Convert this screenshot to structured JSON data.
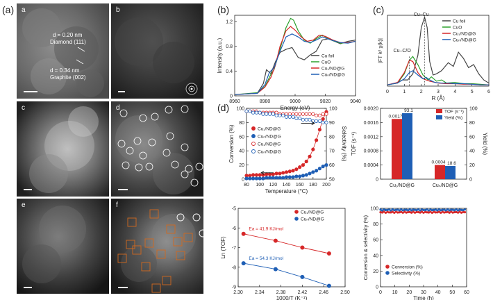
{
  "figure_labels": {
    "a_outer": "(a)",
    "b": "(b)",
    "c": "(c)",
    "d": "(d)"
  },
  "micrographs": {
    "panels": [
      "a",
      "b",
      "c",
      "d",
      "e",
      "f"
    ],
    "annotations": {
      "spacing_1": "d = 0.20 nm",
      "plane_1": "Diamond (111)",
      "spacing_2": "d = 0.34 nm",
      "plane_2": "Graphite (002)"
    }
  },
  "legend_labels": {
    "cu_foil": "Cu foil",
    "cuo": "CuO",
    "cu1": "Cu₁/ND@G",
    "cun": "Cuₙ/ND@G"
  },
  "colors": {
    "cu_foil": "#444444",
    "cuo": "#2ca02c",
    "cu1": "#d62728",
    "cun": "#1f5fb5",
    "orange": "#d2691e"
  },
  "chart_data": [
    {
      "id": "b",
      "type": "line",
      "xlabel": "Energy (eV)",
      "ylabel": "Intensity (a.u.)",
      "xlim": [
        8960,
        9040
      ],
      "ylim": [
        0,
        1.3
      ],
      "xticks": [
        8960,
        8980,
        9000,
        9020,
        9040
      ],
      "yticks": [
        0.0,
        0.4,
        0.8,
        1.2
      ],
      "series": [
        {
          "name": "Cu foil",
          "color": "#444444",
          "x": [
            8960,
            8975,
            8979,
            8981,
            8984,
            8987,
            8990,
            8994,
            8998,
            9002,
            9006,
            9010,
            9014,
            9018,
            9022,
            9026,
            9030,
            9035,
            9040
          ],
          "y": [
            0.02,
            0.04,
            0.2,
            0.42,
            0.36,
            0.55,
            0.7,
            0.75,
            0.78,
            0.62,
            0.58,
            0.66,
            0.72,
            0.9,
            0.92,
            0.88,
            0.84,
            0.88,
            0.9
          ]
        },
        {
          "name": "CuO",
          "color": "#2ca02c",
          "x": [
            8960,
            8975,
            8980,
            8984,
            8986,
            8990,
            8994,
            8997,
            8999,
            9002,
            9006,
            9010,
            9014,
            9018,
            9024,
            9030,
            9035,
            9040
          ],
          "y": [
            0.02,
            0.05,
            0.15,
            0.35,
            0.42,
            0.75,
            1.1,
            1.25,
            1.22,
            1.05,
            0.9,
            0.85,
            0.92,
            0.98,
            0.9,
            0.85,
            0.86,
            0.88
          ]
        },
        {
          "name": "Cu₁/ND@G",
          "color": "#d62728",
          "x": [
            8960,
            8975,
            8980,
            8984,
            8987,
            8990,
            8994,
            8997,
            9000,
            9004,
            9008,
            9012,
            9016,
            9020,
            9025,
            9030,
            9035,
            9040
          ],
          "y": [
            0.02,
            0.04,
            0.14,
            0.3,
            0.5,
            0.8,
            1.05,
            1.12,
            1.06,
            0.95,
            0.88,
            0.9,
            0.98,
            0.96,
            0.9,
            0.86,
            0.86,
            0.88
          ]
        },
        {
          "name": "Cuₙ/ND@G",
          "color": "#1f5fb5",
          "x": [
            8960,
            8975,
            8980,
            8983,
            8986,
            8990,
            8994,
            8998,
            9002,
            9006,
            9010,
            9014,
            9018,
            9024,
            9030,
            9035,
            9040
          ],
          "y": [
            0.02,
            0.04,
            0.18,
            0.38,
            0.45,
            0.72,
            0.95,
            1.0,
            0.95,
            0.88,
            0.86,
            0.9,
            0.95,
            0.9,
            0.86,
            0.85,
            0.88
          ]
        }
      ],
      "legend": [
        "Cu foil",
        "CuO",
        "Cu₁/ND@G",
        "Cuₙ/ND@G"
      ]
    },
    {
      "id": "c",
      "type": "line",
      "xlabel": "R (Å)",
      "ylabel": "|FT k² χ(k)|",
      "xlim": [
        0,
        6
      ],
      "ylim": [
        0,
        1.15
      ],
      "xticks": [
        0,
        1,
        2,
        3,
        4,
        5,
        6
      ],
      "annotations": [
        "Cu–Cu",
        "Cu–C/O"
      ],
      "series": [
        {
          "name": "Cu foil",
          "color": "#444444",
          "x": [
            0,
            0.5,
            0.9,
            1.2,
            1.5,
            1.8,
            2.0,
            2.2,
            2.35,
            2.5,
            2.7,
            2.9,
            3.2,
            3.6,
            3.9,
            4.2,
            4.5,
            4.8,
            5.1,
            5.4,
            5.7,
            6.0
          ],
          "y": [
            0.02,
            0.05,
            0.1,
            0.1,
            0.2,
            0.5,
            0.95,
            1.12,
            0.95,
            0.4,
            0.18,
            0.2,
            0.25,
            0.38,
            0.32,
            0.55,
            0.45,
            0.3,
            0.35,
            0.2,
            0.1,
            0.05
          ]
        },
        {
          "name": "CuO",
          "color": "#2ca02c",
          "x": [
            0,
            0.6,
            1.0,
            1.3,
            1.5,
            1.8,
            2.1,
            2.4,
            2.6,
            2.9,
            3.2,
            3.5,
            4.0,
            4.5,
            5.0,
            5.5,
            6.0
          ],
          "y": [
            0.02,
            0.05,
            0.2,
            0.42,
            0.48,
            0.35,
            0.18,
            0.1,
            0.15,
            0.08,
            0.1,
            0.05,
            0.06,
            0.04,
            0.04,
            0.03,
            0.02
          ]
        },
        {
          "name": "Cu₁/ND@G",
          "color": "#d62728",
          "x": [
            0,
            0.6,
            1.0,
            1.3,
            1.5,
            1.8,
            2.1,
            2.5,
            3.0,
            3.5,
            4.0,
            4.5,
            5.0,
            5.5,
            6.0
          ],
          "y": [
            0.02,
            0.06,
            0.22,
            0.42,
            0.4,
            0.22,
            0.12,
            0.08,
            0.05,
            0.04,
            0.04,
            0.03,
            0.03,
            0.02,
            0.02
          ]
        },
        {
          "name": "Cuₙ/ND@G",
          "color": "#1f5fb5",
          "x": [
            0,
            0.6,
            1.0,
            1.3,
            1.5,
            1.8,
            2.1,
            2.3,
            2.5,
            2.8,
            3.2,
            3.6,
            4.0,
            4.5,
            5.0,
            5.5,
            6.0
          ],
          "y": [
            0.02,
            0.05,
            0.12,
            0.22,
            0.25,
            0.18,
            0.12,
            0.14,
            0.1,
            0.06,
            0.05,
            0.05,
            0.04,
            0.04,
            0.03,
            0.02,
            0.02
          ]
        }
      ],
      "legend": [
        "Cu foil",
        "CuO",
        "Cu₁/ND@G",
        "Cuₙ/ND@G"
      ]
    },
    {
      "id": "d_conversion",
      "type": "scatter",
      "xlabel": "Temperature (°C)",
      "ylabel": "Conversion (%)",
      "y2label": "Selectivity (%)",
      "xlim": [
        80,
        200
      ],
      "ylim": [
        0,
        100
      ],
      "y2lim": [
        50,
        100
      ],
      "xticks": [
        80,
        100,
        120,
        140,
        160,
        180,
        200
      ],
      "yticks": [
        0,
        20,
        40,
        60,
        80,
        100
      ],
      "y2ticks": [
        50,
        60,
        70,
        80,
        90,
        100
      ],
      "x": [
        80,
        85,
        90,
        95,
        100,
        105,
        110,
        115,
        120,
        125,
        130,
        135,
        140,
        145,
        150,
        155,
        160,
        165,
        170,
        175,
        180,
        185,
        190,
        195,
        200
      ],
      "series": [
        {
          "name": "Cu₁/ND@G",
          "axis": "left",
          "filled": true,
          "color": "#d62728",
          "values": [
            5,
            5,
            6,
            6,
            6,
            6,
            7,
            7,
            7,
            8,
            8,
            9,
            10,
            11,
            12,
            14,
            17,
            20,
            25,
            32,
            42,
            55,
            70,
            85,
            95
          ]
        },
        {
          "name": "Cuₙ/ND@G",
          "axis": "left",
          "filled": true,
          "color": "#1f5fb5",
          "values": [
            1,
            1,
            1,
            1,
            1,
            1,
            2,
            2,
            2,
            2,
            2,
            2,
            3,
            3,
            3,
            4,
            4,
            5,
            6,
            8,
            10,
            12,
            15,
            18,
            20
          ]
        },
        {
          "name": "Cu₁/ND@G",
          "axis": "right",
          "filled": false,
          "color": "#d62728",
          "values": [
            98,
            98,
            98,
            98,
            97,
            97,
            97,
            97,
            97,
            97,
            96,
            96,
            96,
            96,
            96,
            96,
            96,
            96,
            96,
            96,
            96,
            95,
            95,
            96,
            96
          ]
        },
        {
          "name": "Cuₙ/ND@G",
          "axis": "right",
          "filled": false,
          "color": "#1f5fb5",
          "values": [
            98,
            98,
            97,
            97,
            97,
            96,
            96,
            96,
            96,
            95,
            95,
            95,
            94,
            94,
            94,
            93,
            93,
            92,
            92,
            92,
            91,
            91,
            91,
            90,
            90
          ]
        }
      ],
      "legend": [
        "Cu₁/ND@G",
        "Cuₙ/ND@G",
        "Cu₁/ND@G",
        "Cuₙ/ND@G"
      ]
    },
    {
      "id": "d_tof",
      "type": "bar",
      "categories": [
        "Cu₁/ND@G",
        "Cuₙ/ND@G"
      ],
      "ylabel": "TOF (s⁻¹)",
      "y2label": "Yield (%)",
      "ylim": [
        0,
        0.002
      ],
      "y2lim": [
        0,
        100
      ],
      "yticks": [
        "0",
        "0.0004",
        "0.0008",
        "0.0012",
        "0.0016",
        "0.0020"
      ],
      "y2ticks": [
        0,
        20,
        40,
        60,
        80,
        100
      ],
      "series": [
        {
          "name": "TOF (s⁻¹)",
          "color": "#d62728",
          "values": [
            0.0017,
            0.0004
          ],
          "labels": [
            "0.0017",
            "0.0004"
          ]
        },
        {
          "name": "Yield (%)",
          "color": "#1f5fb5",
          "values": [
            93.1,
            18.6
          ],
          "labels": [
            "93.1",
            "18.6"
          ]
        }
      ],
      "legend": [
        "TOF (s⁻¹)",
        "Yield (%)"
      ]
    },
    {
      "id": "d_arrhenius",
      "type": "scatter",
      "xlabel": "1000/T (K⁻¹)",
      "ylabel": "Ln (TOF)",
      "xlim": [
        2.3,
        2.5
      ],
      "ylim": [
        -9,
        -5
      ],
      "xticks": [
        "2.30",
        "2.34",
        "2.38",
        "2.42",
        "2.46",
        "2.50"
      ],
      "yticks": [
        -9,
        -8,
        -7,
        -6,
        -5
      ],
      "series": [
        {
          "name": "Cu₁/ND@G",
          "color": "#d62728",
          "x": [
            2.31,
            2.37,
            2.42,
            2.47
          ],
          "y": [
            -6.3,
            -6.65,
            -7.0,
            -7.3
          ],
          "annotation": "Ea = 41.9 KJ/mol"
        },
        {
          "name": "Cuₙ/ND@G",
          "color": "#1f5fb5",
          "x": [
            2.31,
            2.37,
            2.42,
            2.47
          ],
          "y": [
            -7.8,
            -8.1,
            -8.5,
            -8.95
          ],
          "annotation": "Ea = 54.3 KJ/mol"
        }
      ],
      "legend": [
        "Cu₁/ND@G",
        "Cuₙ/ND@G"
      ]
    },
    {
      "id": "d_stability",
      "type": "scatter",
      "xlabel": "Time (h)",
      "ylabel": "Conversion & selectivity (%)",
      "xlim": [
        0,
        60
      ],
      "ylim": [
        0,
        100
      ],
      "xticks": [
        0,
        10,
        20,
        30,
        40,
        50,
        60
      ],
      "yticks": [
        0,
        20,
        40,
        60,
        80,
        100
      ],
      "series": [
        {
          "name": "Conversion (%)",
          "color": "#d62728",
          "level": 95
        },
        {
          "name": "Selectivity (%)",
          "color": "#1f5fb5",
          "level": 98
        }
      ],
      "legend": [
        "Conversion (%)",
        "Selectivity (%)"
      ]
    }
  ]
}
